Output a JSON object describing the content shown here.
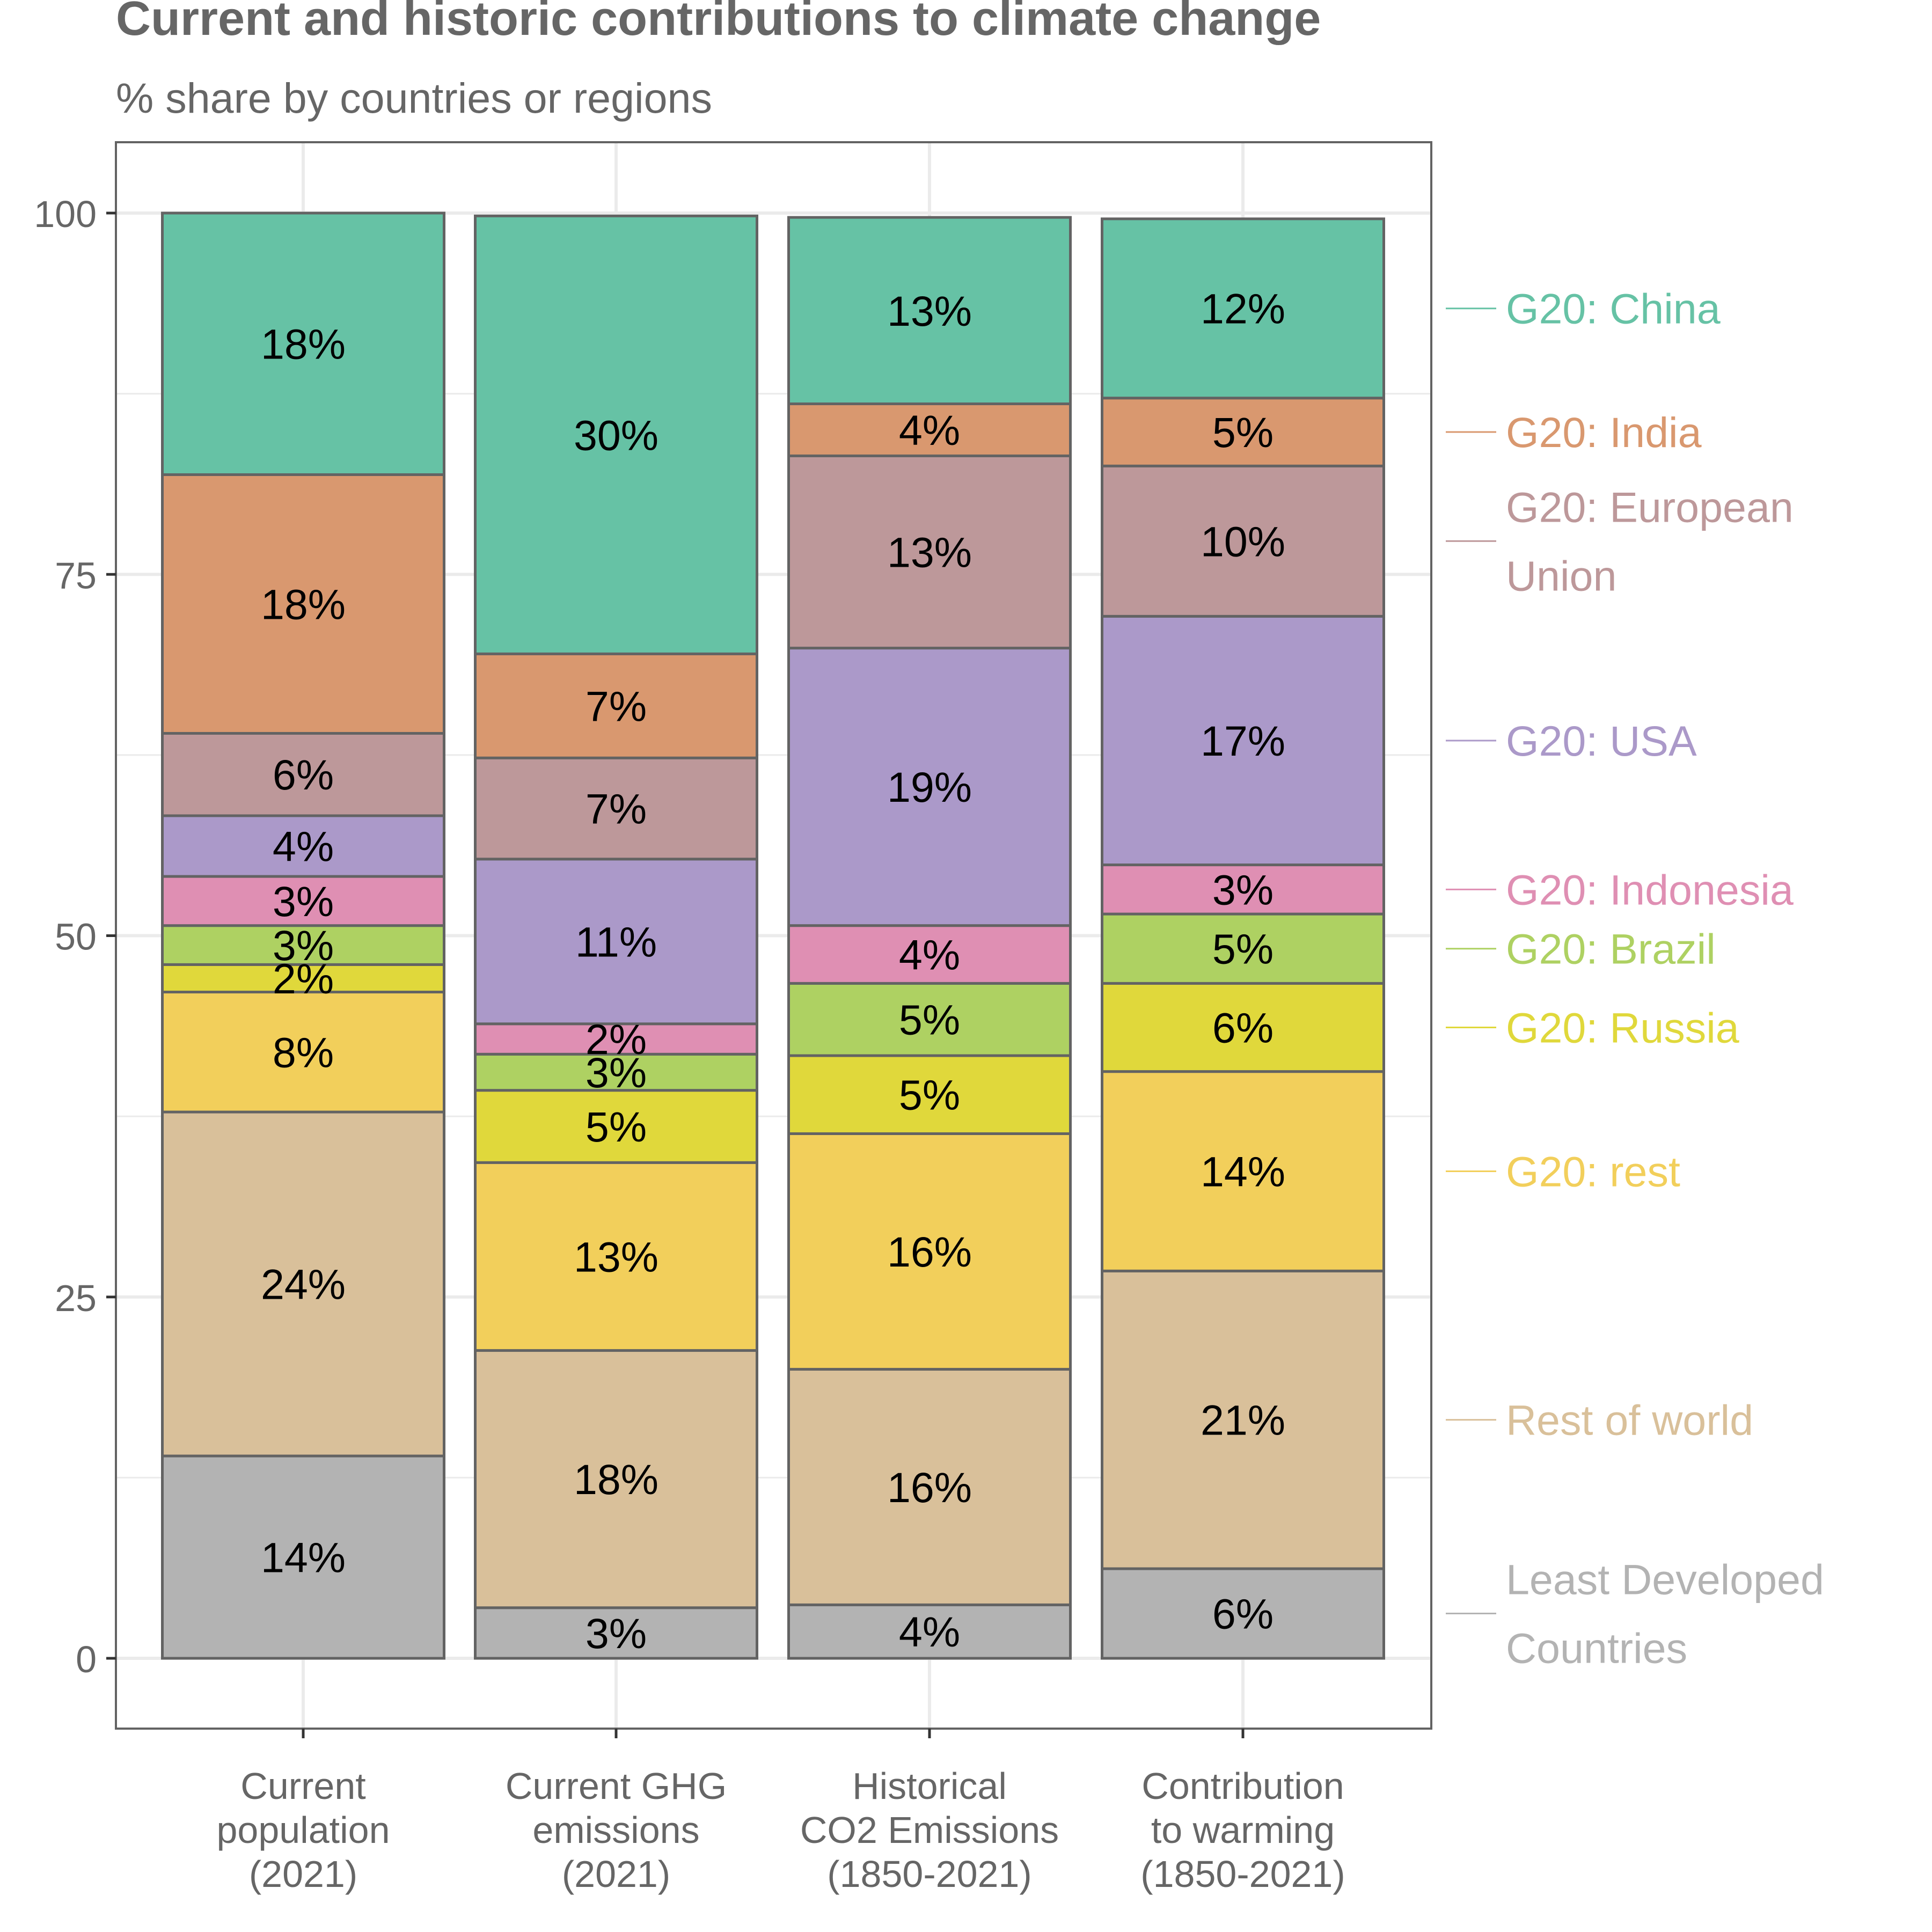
{
  "chart_data": {
    "type": "bar",
    "stacked": true,
    "title": "Current and historic contributions to climate change",
    "subtitle": "% share by countries or regions",
    "xlabel": "",
    "ylabel": "",
    "ylim": [
      0,
      100
    ],
    "y_ticks": [
      "0",
      "25",
      "50",
      "75",
      "100"
    ],
    "grid": true,
    "legend_position": "right",
    "categories": [
      [
        "Current",
        "population",
        "(2021)"
      ],
      [
        "Current GHG",
        "emissions",
        "(2021)"
      ],
      [
        "Historical",
        "CO2 Emissions",
        "(1850-2021)"
      ],
      [
        "Contribution",
        "to warming",
        "(1850-2021)"
      ]
    ],
    "series": [
      {
        "name": "Least Developed Countries",
        "legend_lines": [
          "Least Developed",
          "Countries"
        ],
        "color": "#b3b3b3",
        "values": [
          14,
          3.5,
          3.7,
          6.2
        ],
        "labels": [
          "14%",
          "3%",
          "4%",
          "6%"
        ]
      },
      {
        "name": "Rest of world",
        "legend_lines": [
          "Rest of world"
        ],
        "color": "#d9c09a",
        "values": [
          23.8,
          17.8,
          16.3,
          20.6
        ],
        "labels": [
          "24%",
          "18%",
          "16%",
          "21%"
        ]
      },
      {
        "name": "G20: rest",
        "legend_lines": [
          "G20: rest"
        ],
        "color": "#f2cf5b",
        "values": [
          8.3,
          13.0,
          16.3,
          13.8
        ],
        "labels": [
          "8%",
          "13%",
          "16%",
          "14%"
        ]
      },
      {
        "name": "G20: Russia",
        "legend_lines": [
          "G20: Russia"
        ],
        "color": "#e0d83b",
        "values": [
          1.9,
          5.0,
          5.4,
          6.1
        ],
        "labels": [
          "2%",
          "5%",
          "5%",
          "6%"
        ]
      },
      {
        "name": "G20: Brazil",
        "legend_lines": [
          "G20: Brazil"
        ],
        "color": "#aed162",
        "values": [
          2.7,
          2.5,
          5.0,
          4.8
        ],
        "labels": [
          "3%",
          "3%",
          "5%",
          "5%"
        ]
      },
      {
        "name": "G20: Indonesia",
        "legend_lines": [
          "G20: Indonesia"
        ],
        "color": "#df8fb3",
        "values": [
          3.4,
          2.1,
          4.0,
          3.4
        ],
        "labels": [
          "3%",
          "2%",
          "4%",
          "3%"
        ]
      },
      {
        "name": "G20: USA",
        "legend_lines": [
          "G20: USA"
        ],
        "color": "#ab99c9",
        "values": [
          4.2,
          11.4,
          19.2,
          17.2
        ],
        "labels": [
          "4%",
          "11%",
          "19%",
          "17%"
        ]
      },
      {
        "name": "G20: European Union",
        "legend_lines": [
          "G20: European",
          "Union"
        ],
        "color": "#bd989a",
        "values": [
          5.7,
          7.0,
          13.3,
          10.4
        ],
        "labels": [
          "6%",
          "7%",
          "13%",
          "10%"
        ]
      },
      {
        "name": "G20: India",
        "legend_lines": [
          "G20: India"
        ],
        "color": "#d9986f",
        "values": [
          17.9,
          7.2,
          3.6,
          4.7
        ],
        "labels": [
          "18%",
          "7%",
          "4%",
          "5%"
        ]
      },
      {
        "name": "G20: China",
        "legend_lines": [
          "G20: China"
        ],
        "color": "#66c2a5",
        "values": [
          18.1,
          30.3,
          12.9,
          12.4
        ],
        "labels": [
          "18%",
          "30%",
          "13%",
          "12%"
        ]
      }
    ]
  }
}
